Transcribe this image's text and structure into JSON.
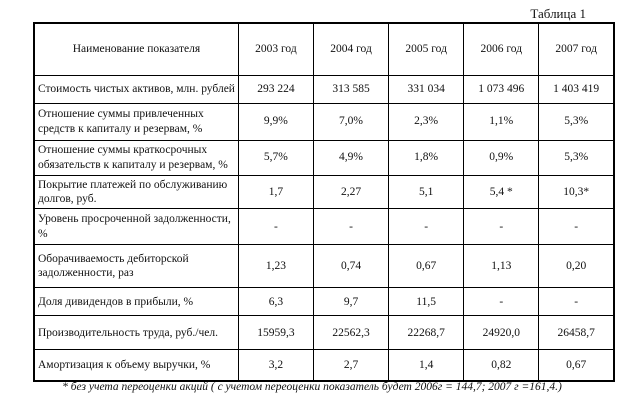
{
  "caption": "Таблица 1",
  "table": {
    "header": {
      "name_col": "Наименование показателя",
      "years": [
        "2003 год",
        "2004 год",
        "2005 год",
        "2006 год",
        "2007 год"
      ]
    },
    "rows": [
      {
        "label": "Стоимость чистых активов, млн. рублей",
        "values": [
          "293 224",
          "313 585",
          "331 034",
          "1 073 496",
          "1 403 419"
        ]
      },
      {
        "label": "Отношение суммы привлеченных средств к капиталу и резервам, %",
        "values": [
          "9,9%",
          "7,0%",
          "2,3%",
          "1,1%",
          "5,3%"
        ]
      },
      {
        "label": "Отношение суммы краткосрочных обязательств к капиталу и резервам, %",
        "values": [
          "5,7%",
          "4,9%",
          "1,8%",
          "0,9%",
          "5,3%"
        ]
      },
      {
        "label": "Покрытие платежей по обслуживанию долгов, руб.",
        "values": [
          "1,7",
          "2,27",
          "5,1",
          "5,4 *",
          "10,3*"
        ]
      },
      {
        "label": "Уровень просроченной задолженности, %",
        "values": [
          "-",
          "-",
          "-",
          "-",
          "-"
        ]
      },
      {
        "label": "Оборачиваемость дебиторской задолженности, раз",
        "values": [
          "1,23",
          "0,74",
          "0,67",
          "1,13",
          "0,20"
        ]
      },
      {
        "label": "Доля дивидендов в прибыли, %",
        "values": [
          "6,3",
          "9,7",
          "11,5",
          "-",
          "-"
        ]
      },
      {
        "label": "Производительность труда, руб./чел.",
        "values": [
          "15959,3",
          "22562,3",
          "22268,7",
          "24920,0",
          "26458,7"
        ]
      },
      {
        "label": "Амортизация к объему выручки, %",
        "values": [
          "3,2",
          "2,7",
          "1,4",
          "0,82",
          "0,67"
        ]
      }
    ]
  },
  "footnote": "* без учета  переоценки акций ( с учетом переоценки показатель будет 2006г = 144,7; 2007 г =161,4.)"
}
